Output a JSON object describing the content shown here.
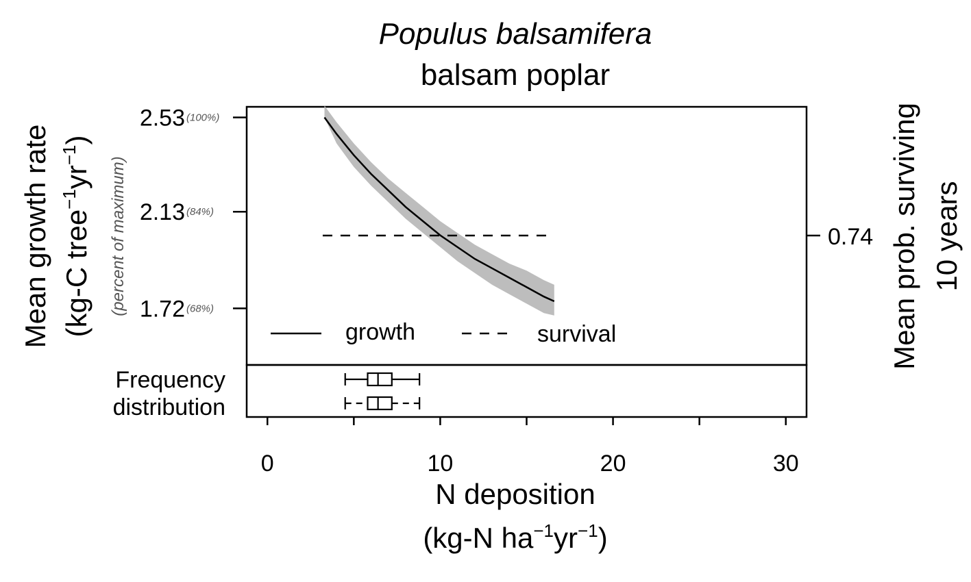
{
  "chart_data": {
    "type": "line",
    "title": "Populus balsamifera",
    "subtitle": "balsam poplar",
    "xlabel": {
      "line1": "N deposition",
      "line2_prefix": "(kg-N ha",
      "line2_sup1": "−1",
      "line2_mid": "yr",
      "line2_sup2": "−1",
      "line2_suffix": ")"
    },
    "ylabel_left": {
      "line1": "Mean growth rate",
      "line2_prefix": "(kg-C tree",
      "line2_sup1": "−1",
      "line2_mid": "yr",
      "line2_sup2": "−1",
      "line2_suffix": ")",
      "sub": "(percent of maximum)"
    },
    "ylabel_right": {
      "line1": "Mean prob. surviving",
      "line2": "10 years"
    },
    "xlim": [
      -1.2,
      31.2
    ],
    "ylim_left": [
      1.48,
      2.575
    ],
    "x_ticks": [
      0,
      5,
      10,
      15,
      20,
      25,
      30
    ],
    "x_tick_labels": [
      {
        "value": 0,
        "label": "0"
      },
      {
        "value": 10,
        "label": "10"
      },
      {
        "value": 20,
        "label": "20"
      },
      {
        "value": 30,
        "label": "30"
      }
    ],
    "y_ticks_left": [
      {
        "value": 2.53,
        "label": "2.53",
        "pct": "(100%)"
      },
      {
        "value": 2.13,
        "label": "2.13",
        "pct": "(84%)"
      },
      {
        "value": 1.72,
        "label": "1.72",
        "pct": "(68%)"
      }
    ],
    "y_ticks_right": [
      {
        "value": 0.74,
        "label": "0.74"
      }
    ],
    "growth": {
      "name": "growth",
      "x": [
        3.3,
        4.0,
        5.0,
        6.0,
        7.0,
        8.0,
        9.0,
        10.0,
        11.0,
        12.0,
        13.0,
        14.0,
        15.0,
        16.0,
        16.6
      ],
      "y": [
        2.53,
        2.46,
        2.37,
        2.29,
        2.22,
        2.15,
        2.09,
        2.03,
        1.98,
        1.93,
        1.89,
        1.85,
        1.81,
        1.77,
        1.75
      ],
      "ci_lower": [
        2.53,
        2.42,
        2.32,
        2.24,
        2.17,
        2.1,
        2.04,
        1.98,
        1.92,
        1.87,
        1.82,
        1.78,
        1.74,
        1.7,
        1.69
      ],
      "ci_upper": [
        2.58,
        2.51,
        2.42,
        2.34,
        2.27,
        2.21,
        2.15,
        2.09,
        2.04,
        1.99,
        1.95,
        1.91,
        1.88,
        1.84,
        1.82
      ]
    },
    "survival": {
      "name": "survival",
      "x": [
        3.2,
        16.6
      ],
      "value": 0.74
    },
    "frequency_label": [
      "Frequency",
      "distribution"
    ],
    "boxplots": [
      {
        "whisker_low": 4.5,
        "q1": 5.8,
        "median": 6.4,
        "q3": 7.2,
        "whisker_high": 8.8,
        "style": "solid"
      },
      {
        "whisker_low": 4.5,
        "q1": 5.8,
        "median": 6.4,
        "q3": 7.2,
        "whisker_high": 8.8,
        "style": "dashed"
      }
    ],
    "grid": false,
    "legend_position": "bottom"
  }
}
